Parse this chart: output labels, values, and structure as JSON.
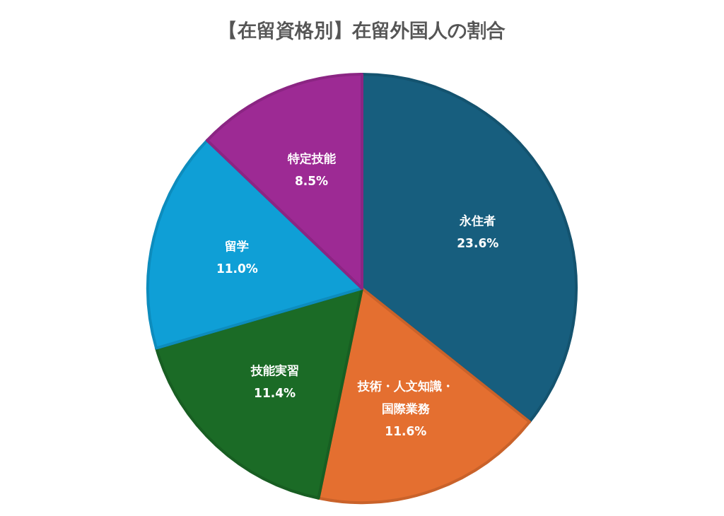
{
  "chart_data": {
    "type": "pie",
    "title": "【在留資格別】在留外国人の割合",
    "categories": [
      "永住者",
      "技術・人文知識・国際業務",
      "技能実習",
      "留学",
      "特定技能"
    ],
    "values": [
      23.6,
      11.6,
      11.4,
      11.0,
      8.5
    ],
    "value_labels": [
      "23.6%",
      "11.6%",
      "11.4%",
      "11.0%",
      "8.5%"
    ],
    "colors": [
      "#175e7e",
      "#e46f30",
      "#1b6b26",
      "#0f9fd6",
      "#9d2a94"
    ]
  }
}
